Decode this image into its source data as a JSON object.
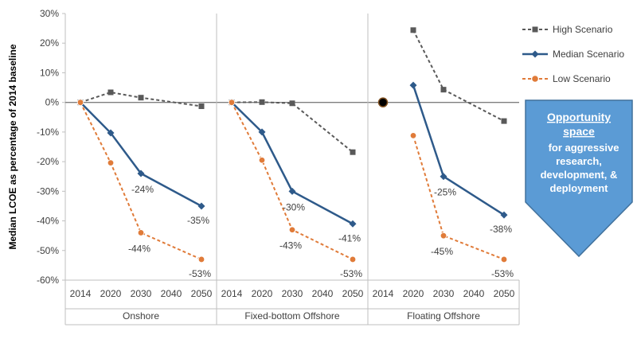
{
  "chart_data": {
    "type": "line",
    "title": "",
    "ylabel": "Median LCOE as percentage of 2014 baseline",
    "ylim": [
      -60,
      30
    ],
    "yticks": [
      30,
      20,
      10,
      0,
      -10,
      -20,
      -30,
      -40,
      -50,
      -60
    ],
    "ytick_labels": [
      "30%",
      "20%",
      "10%",
      "0%",
      "-10%",
      "-20%",
      "-30%",
      "-40%",
      "-50%",
      "-60%"
    ],
    "x_years": [
      "2014",
      "2020",
      "2030",
      "2040",
      "2050"
    ],
    "grid": false,
    "legend_position": "top-right",
    "panels": [
      {
        "name": "Onshore",
        "series": [
          {
            "name": "High Scenario",
            "x": [
              "2014",
              "2020",
              "2030",
              "2050"
            ],
            "values": [
              0,
              3.4,
              1.6,
              -1.3
            ]
          },
          {
            "name": "Median Scenario",
            "x": [
              "2014",
              "2020",
              "2030",
              "2050"
            ],
            "values": [
              0,
              -10.3,
              -24,
              -35
            ]
          },
          {
            "name": "Low Scenario",
            "x": [
              "2014",
              "2020",
              "2030",
              "2050"
            ],
            "values": [
              0,
              -20.4,
              -44,
              -53
            ]
          }
        ],
        "labels": [
          {
            "series": "Median Scenario",
            "x": "2030",
            "text": "-24%"
          },
          {
            "series": "Median Scenario",
            "x": "2050",
            "text": "-35%"
          },
          {
            "series": "Low Scenario",
            "x": "2030",
            "text": "-44%"
          },
          {
            "series": "Low Scenario",
            "x": "2050",
            "text": "-53%"
          }
        ]
      },
      {
        "name": "Fixed-bottom Offshore",
        "series": [
          {
            "name": "High Scenario",
            "x": [
              "2014",
              "2020",
              "2030",
              "2050"
            ],
            "values": [
              0,
              0.1,
              -0.3,
              -16.8
            ]
          },
          {
            "name": "Median Scenario",
            "x": [
              "2014",
              "2020",
              "2030",
              "2050"
            ],
            "values": [
              0,
              -10,
              -30,
              -41
            ]
          },
          {
            "name": "Low Scenario",
            "x": [
              "2014",
              "2020",
              "2030",
              "2050"
            ],
            "values": [
              0,
              -19.5,
              -43,
              -53
            ]
          }
        ],
        "labels": [
          {
            "series": "Median Scenario",
            "x": "2030",
            "text": "-30%"
          },
          {
            "series": "Median Scenario",
            "x": "2050",
            "text": "-41%"
          },
          {
            "series": "Low Scenario",
            "x": "2030",
            "text": "-43%"
          },
          {
            "series": "Low Scenario",
            "x": "2050",
            "text": "-53%"
          }
        ]
      },
      {
        "name": "Floating Offshore",
        "baseline_marker": {
          "x": "2014",
          "value": 0
        },
        "series": [
          {
            "name": "High Scenario",
            "x": [
              "2020",
              "2030",
              "2050"
            ],
            "values": [
              24.4,
              4.3,
              -6.3
            ]
          },
          {
            "name": "Median Scenario",
            "x": [
              "2020",
              "2030",
              "2050"
            ],
            "values": [
              5.8,
              -25,
              -38
            ]
          },
          {
            "name": "Low Scenario",
            "x": [
              "2020",
              "2030",
              "2050"
            ],
            "values": [
              -11.2,
              -45,
              -53
            ]
          }
        ],
        "labels": [
          {
            "series": "Median Scenario",
            "x": "2030",
            "text": "-25%"
          },
          {
            "series": "Median Scenario",
            "x": "2050",
            "text": "-38%"
          },
          {
            "series": "Low Scenario",
            "x": "2030",
            "text": "-45%"
          },
          {
            "series": "Low Scenario",
            "x": "2050",
            "text": "-53%"
          }
        ]
      }
    ],
    "legend": [
      {
        "name": "High Scenario",
        "color": "#595959",
        "dash": "dashed",
        "marker": "square"
      },
      {
        "name": "Median Scenario",
        "color": "#2e5a8a",
        "dash": "solid",
        "marker": "diamond"
      },
      {
        "name": "Low Scenario",
        "color": "#e07b39",
        "dash": "dashed",
        "marker": "circle"
      }
    ],
    "callout": {
      "title": "Opportunity space",
      "body": "for aggressive research, development, & deployment",
      "fill": "#5b9bd5",
      "border": "#41719c"
    }
  }
}
